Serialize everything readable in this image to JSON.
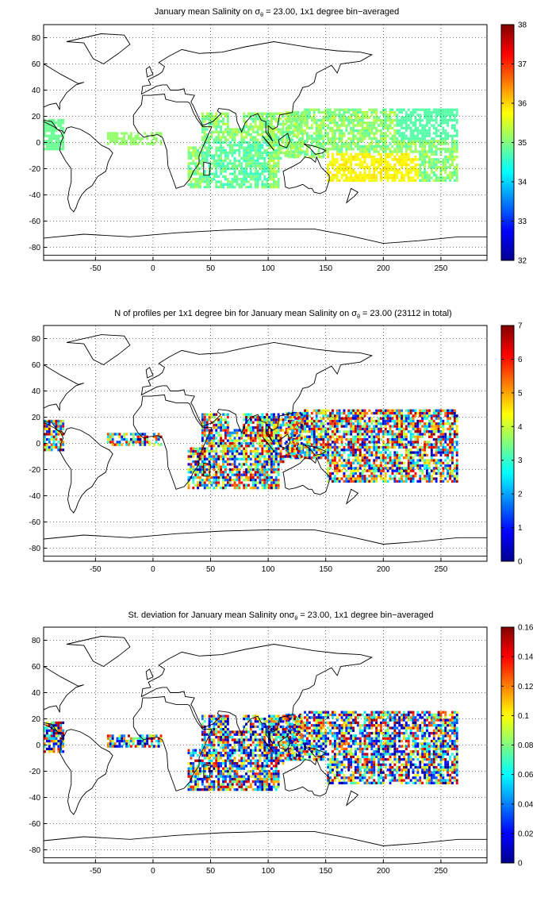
{
  "panels": [
    {
      "id": "mean",
      "title_pre": "January mean Salinity on ",
      "title_sigma": "σ",
      "title_sub": "θ",
      "title_post": " = 23.00, 1x1 degree bin−averaged",
      "colorbar_ticks": [
        "32",
        "33",
        "34",
        "35",
        "36",
        "37",
        "38"
      ],
      "colorbar_range": [
        32,
        38
      ],
      "x_ticks": [
        "-50",
        "0",
        "50",
        "100",
        "150",
        "200",
        "250"
      ],
      "y_ticks": [
        "80",
        "60",
        "40",
        "20",
        "0",
        "-20",
        "-40",
        "-60",
        "-80"
      ]
    },
    {
      "id": "count",
      "title_pre": "N of profiles per 1x1 degree bin for January mean Salinity on ",
      "title_sigma": "σ",
      "title_sub": "θ",
      "title_post": " = 23.00 (23112 in total)",
      "colorbar_ticks": [
        "0",
        "1",
        "2",
        "3",
        "4",
        "5",
        "6",
        "7"
      ],
      "colorbar_range": [
        0,
        7
      ],
      "x_ticks": [
        "-50",
        "0",
        "50",
        "100",
        "150",
        "200",
        "250"
      ],
      "y_ticks": [
        "80",
        "60",
        "40",
        "20",
        "0",
        "-20",
        "-40",
        "-60",
        "-80"
      ]
    },
    {
      "id": "std",
      "title_pre": "St. deviation for January mean Salinity on",
      "title_sigma": "σ",
      "title_sub": "θ",
      "title_post": " = 23.00, 1x1 degree bin−averaged",
      "colorbar_ticks": [
        "0",
        "0.02",
        "0.04",
        "0.06",
        "0.08",
        "0.1",
        "0.12",
        "0.14",
        "0.16"
      ],
      "colorbar_range": [
        0,
        0.16
      ],
      "x_ticks": [
        "-50",
        "0",
        "50",
        "100",
        "150",
        "200",
        "250"
      ],
      "y_ticks": [
        "80",
        "60",
        "40",
        "20",
        "0",
        "-20",
        "-40",
        "-60",
        "-80"
      ]
    }
  ],
  "map_extent": {
    "lon": [
      -95,
      290
    ],
    "lat": [
      -90,
      90
    ]
  },
  "colormap": "jet",
  "grid": "dotted",
  "colors": {
    "coast": "#000000",
    "grid": "#000000",
    "background": "#ffffff"
  }
}
